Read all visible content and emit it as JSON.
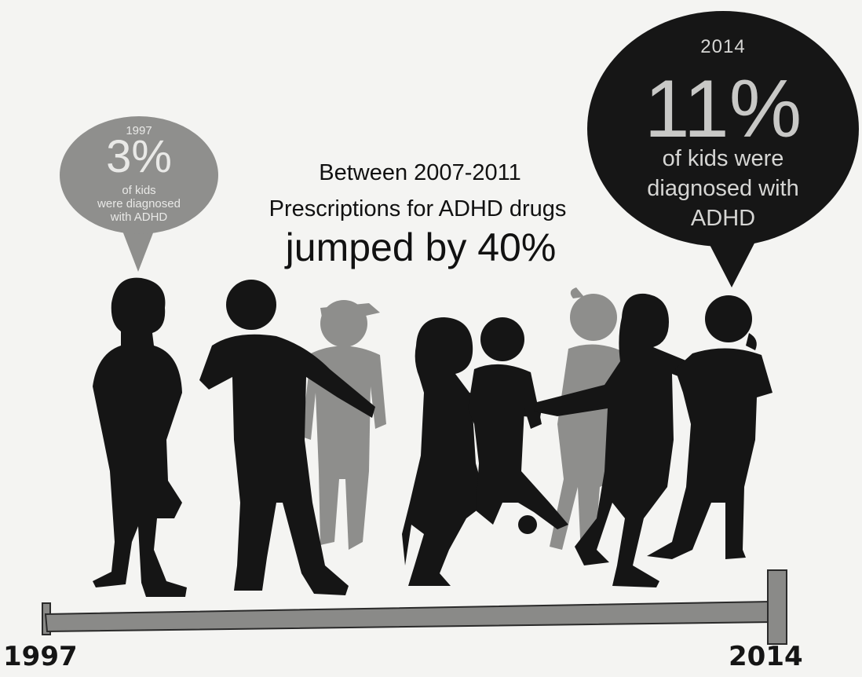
{
  "bubble_1997": {
    "year": "1997",
    "percent": "3%",
    "line1": "of kids",
    "line2": "were diagnosed",
    "line3": "with ADHD"
  },
  "bubble_2014": {
    "year": "2014",
    "percent": "11%",
    "line1": "of kids were",
    "line2": "diagnosed with",
    "line3": "ADHD"
  },
  "headline": {
    "line1": "Between 2007-2011",
    "line2": "Prescriptions for ADHD drugs",
    "line3": "jumped by 40%"
  },
  "timeline": {
    "start_label": "1997",
    "end_label": "2014"
  },
  "colors": {
    "dark_silhouette": "#151515",
    "grey_silhouette": "#8e8e8c",
    "timeline_bar": "#8a8a88"
  },
  "icons": [
    "child-silhouette",
    "speech-bubble",
    "timeline-bar"
  ]
}
